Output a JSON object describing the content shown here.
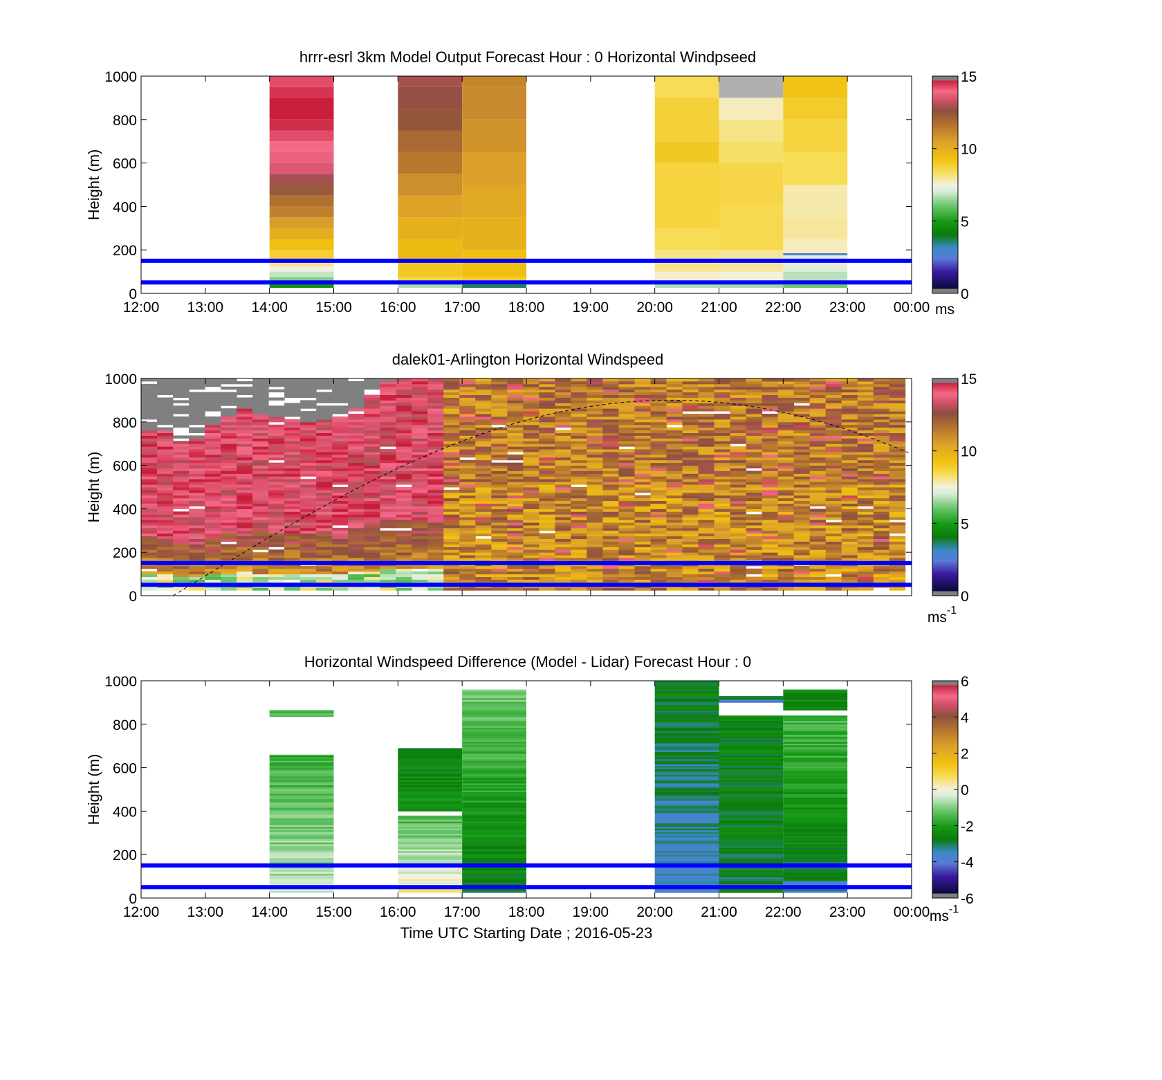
{
  "colors": {
    "lidar_band_lines": "#0000ff",
    "missing_data": "#808080"
  },
  "chart_data": [
    {
      "type": "heatmap",
      "title": "hrrr-esrl 3km Model Output   Forecast Hour : 0 Horizontal Windpseed",
      "ylabel": "Height (m)",
      "xlabel": "",
      "x_ticks": [
        "12:00",
        "13:00",
        "14:00",
        "15:00",
        "16:00",
        "17:00",
        "18:00",
        "19:00",
        "20:00",
        "21:00",
        "22:00",
        "23:00",
        "00:00"
      ],
      "xlim_hours": [
        12,
        24
      ],
      "y_ticks": [
        "0",
        "200",
        "400",
        "600",
        "800",
        "1000"
      ],
      "ylim": [
        0,
        1000
      ],
      "colorbar": {
        "ticks": [
          "0",
          "5",
          "10",
          "15"
        ],
        "range": [
          0,
          15
        ],
        "unit_label": "ms",
        "unit_superscript": ""
      },
      "reference_lines_m": [
        50,
        150
      ],
      "columns": [
        {
          "hour": 14,
          "levels": [
            [
              25,
              50,
              4.5
            ],
            [
              50,
              75,
              6.2
            ],
            [
              75,
              100,
              6.8
            ],
            [
              100,
              125,
              7.5
            ],
            [
              125,
              150,
              8.0
            ],
            [
              150,
              200,
              8.8
            ],
            [
              200,
              250,
              9.3
            ],
            [
              250,
              300,
              10.0
            ],
            [
              300,
              350,
              10.6
            ],
            [
              350,
              400,
              11.2
            ],
            [
              400,
              450,
              11.6
            ],
            [
              450,
              500,
              12.2
            ],
            [
              500,
              550,
              12.8
            ],
            [
              550,
              600,
              13.5
            ],
            [
              600,
              650,
              13.8
            ],
            [
              650,
              700,
              14.0
            ],
            [
              700,
              750,
              14.4
            ],
            [
              750,
              800,
              14.8
            ],
            [
              800,
              850,
              15.0
            ],
            [
              850,
              900,
              15.3
            ],
            [
              900,
              950,
              14.7
            ],
            [
              950,
              1000,
              14.4
            ]
          ]
        },
        {
          "hour": 16,
          "levels": [
            [
              25,
              40,
              6.6
            ],
            [
              40,
              75,
              8.6
            ],
            [
              75,
              150,
              9.0
            ],
            [
              150,
              250,
              9.5
            ],
            [
              250,
              350,
              9.9
            ],
            [
              350,
              450,
              10.4
            ],
            [
              450,
              550,
              10.9
            ],
            [
              550,
              650,
              11.4
            ],
            [
              650,
              750,
              11.8
            ],
            [
              750,
              850,
              12.3
            ],
            [
              850,
              950,
              12.6
            ],
            [
              950,
              1000,
              12.8
            ]
          ]
        },
        {
          "hour": 17,
          "levels": [
            [
              25,
              40,
              3.5
            ],
            [
              40,
              75,
              8.9
            ],
            [
              75,
              200,
              9.3
            ],
            [
              200,
              350,
              9.9
            ],
            [
              350,
              500,
              10.2
            ],
            [
              500,
              650,
              10.5
            ],
            [
              650,
              800,
              10.8
            ],
            [
              800,
              950,
              11.0
            ],
            [
              950,
              1000,
              11.1
            ]
          ]
        },
        {
          "hour": 20,
          "levels": [
            [
              25,
              40,
              6.6
            ],
            [
              40,
              60,
              6.8
            ],
            [
              60,
              100,
              7.6
            ],
            [
              100,
              200,
              8.0
            ],
            [
              200,
              300,
              8.3
            ],
            [
              300,
              600,
              8.6
            ],
            [
              600,
              700,
              9.0
            ],
            [
              700,
              900,
              8.7
            ],
            [
              900,
              1000,
              8.3
            ]
          ]
        },
        {
          "hour": 21,
          "levels": [
            [
              25,
              40,
              6.5
            ],
            [
              40,
              60,
              6.9
            ],
            [
              60,
              100,
              7.5
            ],
            [
              100,
              200,
              7.9
            ],
            [
              200,
              400,
              8.4
            ],
            [
              400,
              600,
              8.5
            ],
            [
              600,
              700,
              8.2
            ],
            [
              700,
              800,
              8.0
            ],
            [
              800,
              900,
              7.7
            ],
            [
              900,
              1000,
              null
            ]
          ]
        },
        {
          "hour": 22,
          "levels": [
            [
              25,
              40,
              6.0
            ],
            [
              40,
              100,
              6.7
            ],
            [
              100,
              175,
              7.2
            ],
            [
              175,
              185,
              2.5
            ],
            [
              185,
              250,
              7.7
            ],
            [
              250,
              350,
              7.9
            ],
            [
              350,
              500,
              7.8
            ],
            [
              500,
              650,
              8.3
            ],
            [
              650,
              800,
              8.6
            ],
            [
              800,
              900,
              8.9
            ],
            [
              900,
              1000,
              9.2
            ]
          ]
        }
      ]
    },
    {
      "type": "heatmap",
      "title": "dalek01-Arlington  Horizontal Windspeed",
      "ylabel": "Height (m)",
      "xlabel": "",
      "x_ticks": [],
      "xlim_hours": [
        12,
        24
      ],
      "y_ticks": [
        "0",
        "200",
        "400",
        "600",
        "800",
        "1000"
      ],
      "ylim": [
        0,
        1000
      ],
      "colorbar": {
        "ticks": [
          "0",
          "5",
          "10",
          "15"
        ],
        "range": [
          0,
          15
        ],
        "unit_label": "ms",
        "unit_superscript": "-1"
      },
      "reference_lines_m": [
        50,
        150
      ],
      "time_range_hours": [
        12,
        23.9
      ],
      "top_m": [
        760,
        750,
        700,
        720,
        780,
        820,
        860,
        830,
        820,
        800,
        790,
        810,
        820,
        860,
        920,
        980,
        990,
        1000,
        1000,
        1000,
        1000,
        1000,
        1000,
        1000,
        1000,
        1000,
        1000,
        1000,
        1000,
        1000,
        1000,
        1000,
        1000,
        1000,
        1000,
        1000,
        1000,
        1000,
        1000,
        1000,
        1000,
        1000,
        1000,
        1000,
        1000,
        1000,
        1000,
        1000
      ],
      "curve": {
        "peak_hour": 20.25,
        "peak_m": 900,
        "sunrise_hour": 12.5,
        "sunset_hour": 28.0
      }
    },
    {
      "type": "heatmap",
      "title": "Horizontal Windspeed Difference (Model - Lidar) Forecast Hour : 0",
      "ylabel": "Height (m)",
      "xlabel": "Time UTC  Starting Date ; 2016-05-23",
      "x_ticks": [
        "12:00",
        "13:00",
        "14:00",
        "15:00",
        "16:00",
        "17:00",
        "18:00",
        "19:00",
        "20:00",
        "21:00",
        "22:00",
        "23:00",
        "00:00"
      ],
      "xlim_hours": [
        12,
        24
      ],
      "y_ticks": [
        "0",
        "200",
        "400",
        "600",
        "800",
        "1000"
      ],
      "ylim": [
        0,
        1000
      ],
      "colorbar": {
        "ticks": [
          "-6",
          "-4",
          "-2",
          "0",
          "2",
          "4",
          "6"
        ],
        "range": [
          -6,
          6
        ],
        "unit_label": "ms",
        "unit_superscript": "-1"
      },
      "reference_lines_m": [
        50,
        150
      ],
      "columns": [
        {
          "hour": 14,
          "segments": [
            [
              25,
              660,
              -0.6,
              -1.8
            ],
            [
              835,
              865,
              -1.5,
              -1.5
            ]
          ]
        },
        {
          "hour": 16,
          "segments": [
            [
              25,
              380,
              0.2,
              -1.6
            ],
            [
              400,
              690,
              -2.3,
              -2.8
            ]
          ]
        },
        {
          "hour": 17,
          "segments": [
            [
              25,
              960,
              -2.9,
              -1.2
            ]
          ]
        },
        {
          "hour": 20,
          "segments": [
            [
              25,
              1000,
              -3.8,
              -2.8
            ]
          ]
        },
        {
          "hour": 21,
          "segments": [
            [
              25,
              840,
              -3.0,
              -2.7
            ],
            [
              900,
              915,
              -3.8,
              -3.8
            ],
            [
              915,
              930,
              -3.0,
              -3.0
            ]
          ]
        },
        {
          "hour": 22,
          "segments": [
            [
              25,
              80,
              -3.6,
              -3.6
            ],
            [
              80,
              840,
              -3.0,
              -1.6
            ],
            [
              865,
              960,
              -2.6,
              -2.6
            ]
          ]
        }
      ]
    }
  ]
}
